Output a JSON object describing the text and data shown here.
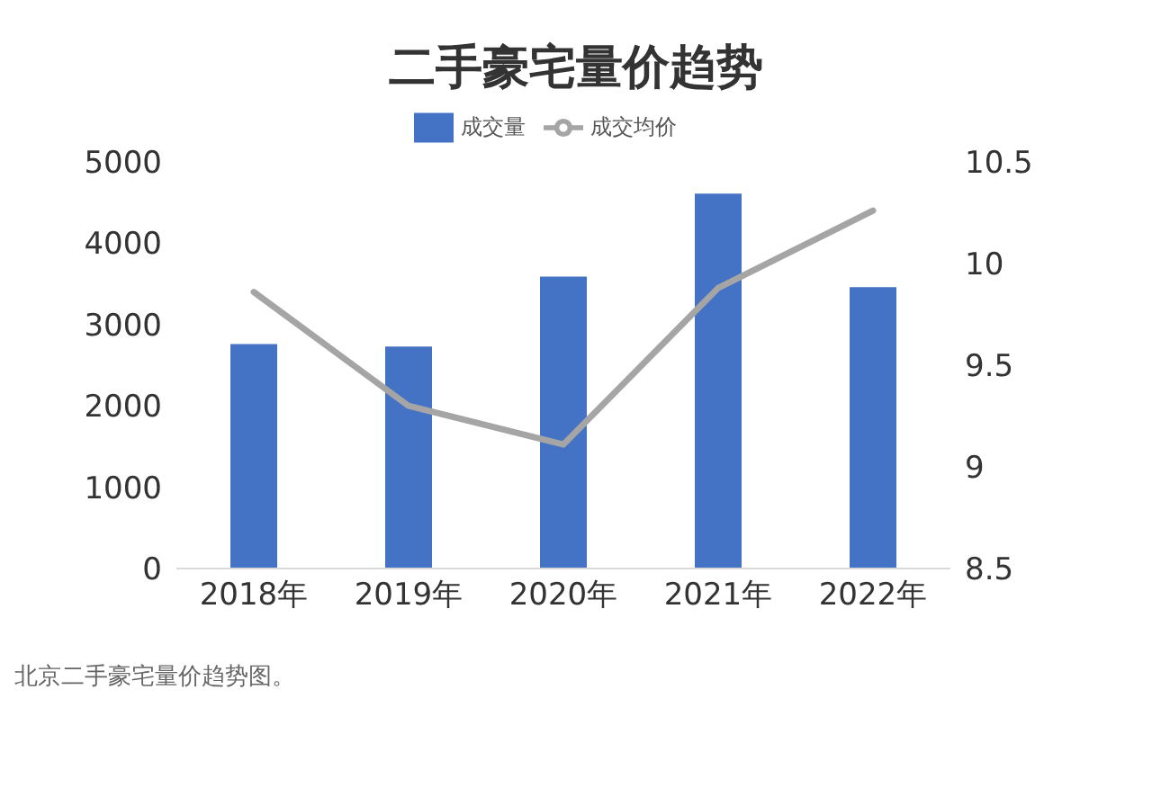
{
  "chart_data": {
    "type": "bar",
    "title": "二手豪宅量价趋势",
    "categories": [
      "2018年",
      "2019年",
      "2020年",
      "2021年",
      "2022年"
    ],
    "series": [
      {
        "name": "成交量",
        "color": "#4472c4",
        "values": [
          2760,
          2730,
          3590,
          4610,
          3460
        ]
      },
      {
        "name": "成交均价",
        "type": "line",
        "axis": "y2",
        "color": "#a5a5a5",
        "values": [
          9.86,
          9.3,
          9.11,
          9.88,
          10.26
        ]
      }
    ],
    "ylim": [
      0,
      5000
    ],
    "yticks": [
      0,
      1000,
      2000,
      3000,
      4000,
      5000
    ],
    "y2lim": [
      8.5,
      10.5
    ],
    "y2ticks": [
      8.5,
      9,
      9.5,
      10,
      10.5
    ],
    "grid": false,
    "legend": "top",
    "marker": "none",
    "line_style": "solid",
    "annotations": [
      "北京二手豪宅量价趋势图。"
    ]
  }
}
